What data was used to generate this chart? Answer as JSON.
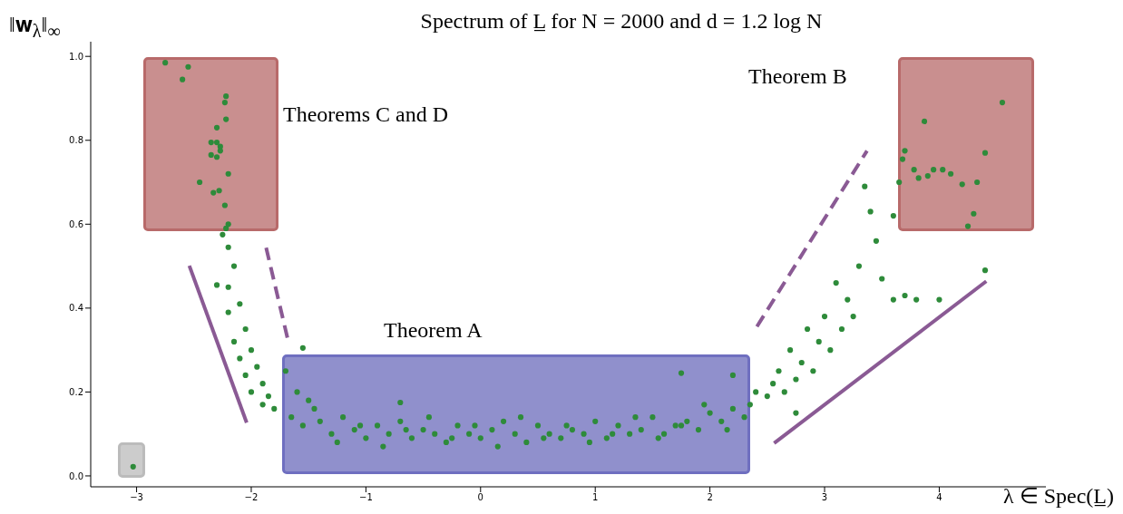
{
  "chart_data": {
    "type": "scatter",
    "title": "Spectrum of L̲ for N = 2000 and d = 1.2 log N",
    "xlabel": "λ ∈ Spec(L̲)",
    "ylabel": "‖𝐰$_{λ}$‖$_{∞}$",
    "xlim": [
      -3.4,
      4.93
    ],
    "ylim": [
      -0.026,
      1.035
    ],
    "xticks": [
      {
        "value": -3,
        "label": "−3"
      },
      {
        "value": -2,
        "label": "−2"
      },
      {
        "value": -1,
        "label": "−1"
      },
      0,
      1,
      2,
      3,
      4
    ],
    "yticks": [
      {
        "value": 0,
        "label": "0.0"
      },
      0.2,
      0.4,
      0.6,
      0.8,
      {
        "value": 1,
        "label": "1.0"
      }
    ],
    "grid": false,
    "legend": false,
    "annotations": [
      "Theorems C and D",
      "Theorem A",
      "Theorem B"
    ],
    "series": [
      {
        "type": "line",
        "color": "#8a5a94",
        "line_style": "solid",
        "x": [
          -2.54,
          -2.04
        ],
        "values": [
          0.501,
          0.127
        ]
      },
      {
        "type": "line",
        "color": "#8a5a94",
        "line_style": "dashed",
        "x": [
          -1.87,
          -1.68
        ],
        "values": [
          0.544,
          0.324
        ]
      },
      {
        "type": "line",
        "color": "#8a5a94",
        "line_style": "dashed",
        "x": [
          2.41,
          3.37
        ],
        "values": [
          0.356,
          0.775
        ]
      },
      {
        "type": "line",
        "color": "#8a5a94",
        "line_style": "solid",
        "x": [
          2.56,
          4.41
        ],
        "values": [
          0.078,
          0.464
        ]
      },
      {
        "color": "#2e8b3a",
        "marker": "circle",
        "x": [
          -2.75,
          -2.55,
          -2.6,
          -2.22,
          -2.23,
          -2.22,
          -2.3,
          -2.35,
          -2.3,
          -2.27,
          -2.27,
          -2.35,
          -2.3,
          -2.2,
          -2.45,
          -2.33,
          -2.28,
          -2.23,
          -2.2,
          -2.22,
          -3.03,
          -2.25,
          -2.2,
          -2.15,
          -2.3,
          -2.2,
          -2.1,
          -2.2,
          -2.05,
          -2.15,
          -2.0,
          -2.1,
          -1.95,
          -2.05,
          -1.9,
          -2.0,
          -1.85,
          -1.9,
          -1.8,
          -1.55,
          -1.7,
          -1.6,
          -1.5,
          -1.65,
          -1.55,
          -1.4,
          -1.3,
          -1.2,
          -1.1,
          -1.0,
          -0.9,
          -0.8,
          -0.7,
          -0.6,
          -0.5,
          -0.4,
          -0.3,
          -0.2,
          -0.1,
          0.0,
          0.1,
          0.2,
          0.3,
          0.4,
          0.5,
          0.6,
          0.7,
          0.8,
          0.9,
          1.0,
          1.1,
          1.2,
          1.3,
          1.4,
          1.5,
          1.6,
          1.7,
          1.8,
          1.9,
          2.0,
          2.1,
          2.2,
          2.3,
          -1.45,
          -1.25,
          -1.05,
          -0.85,
          -0.65,
          -0.45,
          -0.25,
          -0.05,
          0.15,
          0.35,
          0.55,
          0.75,
          0.95,
          1.15,
          1.35,
          1.55,
          1.75,
          1.95,
          2.15,
          -0.7,
          1.75,
          2.2,
          2.35,
          2.4,
          2.5,
          2.55,
          2.6,
          2.65,
          2.7,
          2.75,
          2.8,
          2.85,
          2.9,
          2.95,
          3.0,
          3.05,
          3.1,
          3.15,
          3.2,
          3.25,
          3.3,
          3.35,
          3.4,
          3.45,
          3.5,
          3.6,
          3.6,
          3.7,
          3.8,
          4.0,
          4.4,
          2.75,
          3.65,
          3.68,
          3.7,
          3.78,
          3.82,
          3.87,
          3.9,
          3.95,
          4.03,
          4.1,
          4.2,
          4.25,
          4.3,
          4.33,
          4.4,
          4.55
        ],
        "values": [
          0.985,
          0.975,
          0.945,
          0.905,
          0.89,
          0.85,
          0.83,
          0.795,
          0.795,
          0.785,
          0.775,
          0.765,
          0.76,
          0.72,
          0.7,
          0.675,
          0.68,
          0.645,
          0.6,
          0.59,
          0.022,
          0.575,
          0.545,
          0.5,
          0.455,
          0.45,
          0.41,
          0.39,
          0.35,
          0.32,
          0.3,
          0.28,
          0.26,
          0.24,
          0.22,
          0.2,
          0.19,
          0.17,
          0.16,
          0.305,
          0.25,
          0.2,
          0.18,
          0.14,
          0.12,
          0.13,
          0.1,
          0.14,
          0.11,
          0.09,
          0.12,
          0.1,
          0.13,
          0.09,
          0.11,
          0.1,
          0.08,
          0.12,
          0.1,
          0.09,
          0.11,
          0.13,
          0.1,
          0.08,
          0.12,
          0.1,
          0.09,
          0.11,
          0.1,
          0.13,
          0.09,
          0.12,
          0.1,
          0.11,
          0.14,
          0.1,
          0.12,
          0.13,
          0.11,
          0.15,
          0.13,
          0.16,
          0.14,
          0.16,
          0.08,
          0.12,
          0.07,
          0.11,
          0.14,
          0.09,
          0.12,
          0.07,
          0.14,
          0.09,
          0.12,
          0.08,
          0.1,
          0.14,
          0.09,
          0.12,
          0.17,
          0.11,
          0.175,
          0.245,
          0.24,
          0.17,
          0.2,
          0.19,
          0.22,
          0.25,
          0.2,
          0.3,
          0.23,
          0.27,
          0.35,
          0.25,
          0.32,
          0.38,
          0.3,
          0.46,
          0.35,
          0.42,
          0.38,
          0.5,
          0.69,
          0.63,
          0.56,
          0.47,
          0.42,
          0.62,
          0.43,
          0.42,
          0.42,
          0.49,
          0.15,
          0.7,
          0.755,
          0.775,
          0.73,
          0.71,
          0.845,
          0.715,
          0.73,
          0.73,
          0.72,
          0.695,
          0.595,
          0.625,
          0.7,
          0.77,
          0.89
        ]
      }
    ]
  }
}
